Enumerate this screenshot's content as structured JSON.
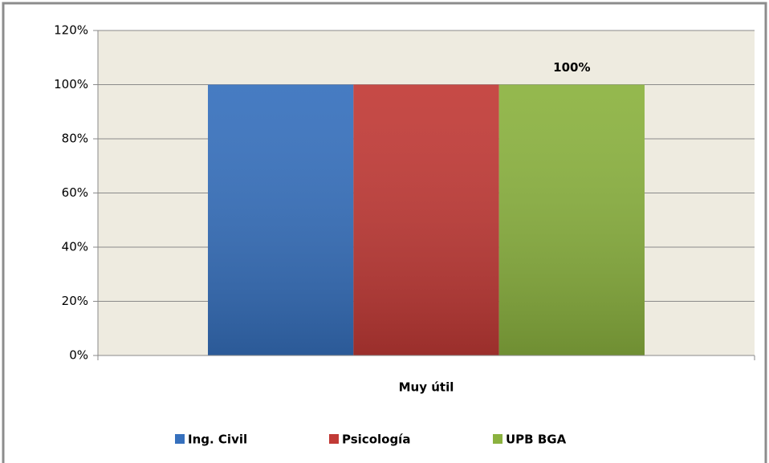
{
  "chart_data": {
    "type": "bar",
    "categories": [
      "Muy útil"
    ],
    "series": [
      {
        "name": "Ing. Civil",
        "color": "#3670bd",
        "values": [
          100
        ]
      },
      {
        "name": "Psicología",
        "color": "#c13a36",
        "values": [
          100
        ]
      },
      {
        "name": "UPB BGA",
        "color": "#8bb23f",
        "values": [
          100
        ],
        "value_labels": [
          "100%"
        ]
      }
    ],
    "ylim": [
      0,
      120
    ],
    "yticks": [
      {
        "value": 0,
        "label": "0%"
      },
      {
        "value": 20,
        "label": "20%"
      },
      {
        "value": 40,
        "label": "40%"
      },
      {
        "value": 60,
        "label": "60%"
      },
      {
        "value": 80,
        "label": "80%"
      },
      {
        "value": 100,
        "label": "100%"
      },
      {
        "value": 120,
        "label": "120%"
      }
    ],
    "grid": true,
    "legend": "bottom"
  }
}
